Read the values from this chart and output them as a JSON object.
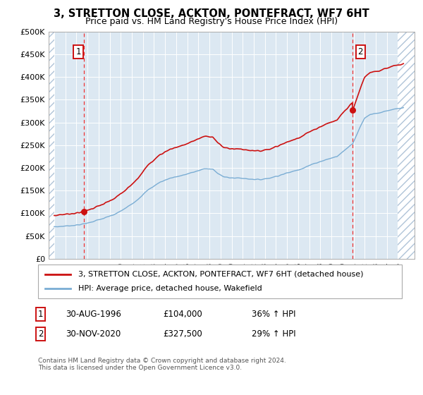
{
  "title": "3, STRETTON CLOSE, ACKTON, PONTEFRACT, WF7 6HT",
  "subtitle": "Price paid vs. HM Land Registry's House Price Index (HPI)",
  "legend_line1": "3, STRETTON CLOSE, ACKTON, PONTEFRACT, WF7 6HT (detached house)",
  "legend_line2": "HPI: Average price, detached house, Wakefield",
  "annotation1_label": "1",
  "annotation1_date": "30-AUG-1996",
  "annotation1_price": "£104,000",
  "annotation1_hpi": "36% ↑ HPI",
  "annotation2_label": "2",
  "annotation2_date": "30-NOV-2020",
  "annotation2_price": "£327,500",
  "annotation2_hpi": "29% ↑ HPI",
  "footer": "Contains HM Land Registry data © Crown copyright and database right 2024.\nThis data is licensed under the Open Government Licence v3.0.",
  "sale1_x": 1996.67,
  "sale1_y": 104000,
  "sale2_x": 2020.92,
  "sale2_y": 327500,
  "hpi_at_sale1": 76500,
  "hpi_at_sale2": 253900,
  "ylim": [
    0,
    500000
  ],
  "xlim": [
    1993.5,
    2026.5
  ],
  "yticks": [
    0,
    50000,
    100000,
    150000,
    200000,
    250000,
    300000,
    350000,
    400000,
    450000,
    500000
  ],
  "xticks": [
    1994,
    1995,
    1996,
    1997,
    1998,
    1999,
    2000,
    2001,
    2002,
    2003,
    2004,
    2005,
    2006,
    2007,
    2008,
    2009,
    2010,
    2011,
    2012,
    2013,
    2014,
    2015,
    2016,
    2017,
    2018,
    2019,
    2020,
    2021,
    2022,
    2023,
    2024,
    2025
  ],
  "hpi_color": "#7aadd4",
  "price_color": "#cc1111",
  "bg_color": "#dce8f2",
  "grid_color": "#ffffff",
  "vline_color": "#ee3333",
  "annotation_box_color": "#cc1111",
  "title_fontsize": 10.5,
  "subtitle_fontsize": 9.0,
  "tick_fontsize": 8.0,
  "legend_fontsize": 8.0,
  "annot_fontsize": 8.5,
  "footer_fontsize": 6.5
}
